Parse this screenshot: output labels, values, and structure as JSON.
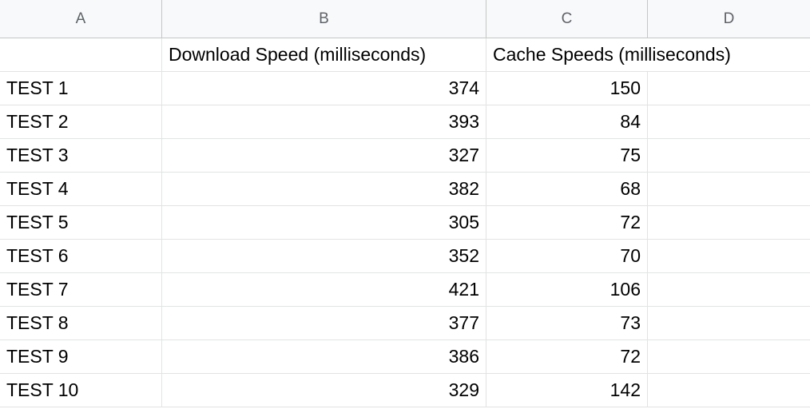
{
  "column_headers": [
    "A",
    "B",
    "C",
    "D"
  ],
  "header_row": {
    "a": "",
    "b": "Download Speed (milliseconds)",
    "c": "Cache Speeds (milliseconds)",
    "d": ""
  },
  "rows": [
    {
      "label": "TEST 1",
      "download": "374",
      "cache": "150"
    },
    {
      "label": "TEST 2",
      "download": "393",
      "cache": "84"
    },
    {
      "label": "TEST 3",
      "download": "327",
      "cache": "75"
    },
    {
      "label": "TEST 4",
      "download": "382",
      "cache": "68"
    },
    {
      "label": "TEST 5",
      "download": "305",
      "cache": "72"
    },
    {
      "label": "TEST 6",
      "download": "352",
      "cache": "70"
    },
    {
      "label": "TEST 7",
      "download": "421",
      "cache": "106"
    },
    {
      "label": "TEST 8",
      "download": "377",
      "cache": "73"
    },
    {
      "label": "TEST 9",
      "download": "386",
      "cache": "72"
    },
    {
      "label": "TEST 10",
      "download": "329",
      "cache": "142"
    }
  ],
  "colors": {
    "header_bg": "#f8f9fa",
    "grid_line": "#e2e3e3",
    "header_text": "#5f6368"
  }
}
